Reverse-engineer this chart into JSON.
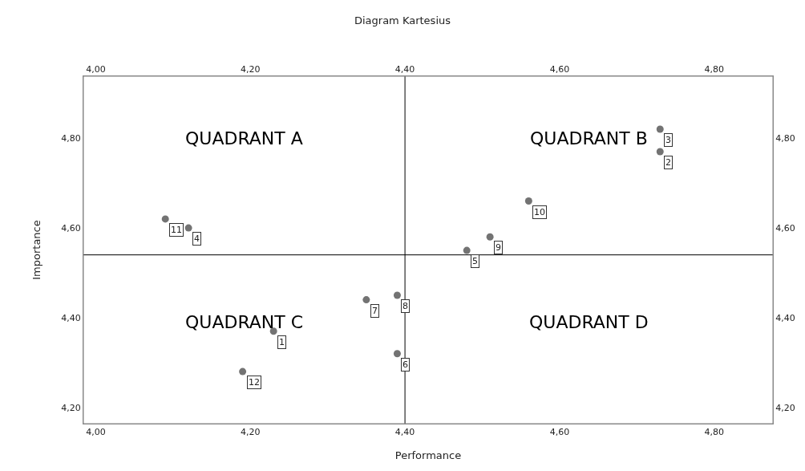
{
  "chart_data": {
    "type": "scatter",
    "title": "Diagram Kartesius",
    "xlabel": "Performance",
    "ylabel": "Importance",
    "x": [
      4.23,
      4.73,
      4.73,
      4.12,
      4.48,
      4.39,
      4.35,
      4.39,
      4.51,
      4.56,
      4.09,
      4.19
    ],
    "series": [
      {
        "color": "#737373",
        "values": [
          4.37,
          4.77,
          4.82,
          4.6,
          4.55,
          4.32,
          4.44,
          4.45,
          4.58,
          4.66,
          4.62,
          4.28
        ]
      }
    ],
    "marker": "circle",
    "xlim": [
      3.984,
      4.876
    ],
    "ylim": [
      4.164,
      4.938
    ],
    "xticks": [
      {
        "value": 4.0,
        "label": "4,00"
      },
      {
        "value": 4.2,
        "label": "4,20"
      },
      {
        "value": 4.4,
        "label": "4,40"
      },
      {
        "value": 4.6,
        "label": "4,60"
      },
      {
        "value": 4.8,
        "label": "4,80"
      }
    ],
    "yticks": [
      {
        "value": 4.2,
        "label": "4,20"
      },
      {
        "value": 4.4,
        "label": "4,40"
      },
      {
        "value": 4.6,
        "label": "4,60"
      },
      {
        "value": 4.8,
        "label": "4,80"
      }
    ],
    "x2lim": [
      3.984,
      4.876
    ],
    "y2lim": [
      4.164,
      4.938
    ],
    "x2ticks": [
      {
        "value": 4.0,
        "label": "4,00"
      },
      {
        "value": 4.2,
        "label": "4,20"
      },
      {
        "value": 4.4,
        "label": "4,40"
      },
      {
        "value": 4.6,
        "label": "4,60"
      },
      {
        "value": 4.8,
        "label": "4,80"
      }
    ],
    "y2ticks": [
      {
        "value": 4.2,
        "label": "4,20"
      },
      {
        "value": 4.4,
        "label": "4,40"
      },
      {
        "value": 4.6,
        "label": "4,60"
      },
      {
        "value": 4.8,
        "label": "4,80"
      }
    ],
    "ref_lines": [
      {
        "axis": "x",
        "value": 4.4,
        "color": "#000000"
      },
      {
        "axis": "y",
        "value": 4.54,
        "color": "#000000"
      }
    ],
    "legend": false,
    "annotations": [
      {
        "text": "1",
        "x": 4.23,
        "y": 4.37
      },
      {
        "text": "2",
        "x": 4.73,
        "y": 4.77
      },
      {
        "text": "3",
        "x": 4.73,
        "y": 4.82
      },
      {
        "text": "4",
        "x": 4.12,
        "y": 4.6
      },
      {
        "text": "5",
        "x": 4.48,
        "y": 4.55
      },
      {
        "text": "6",
        "x": 4.39,
        "y": 4.32
      },
      {
        "text": "7",
        "x": 4.35,
        "y": 4.44
      },
      {
        "text": "8",
        "x": 4.39,
        "y": 4.45
      },
      {
        "text": "9",
        "x": 4.51,
        "y": 4.58
      },
      {
        "text": "10",
        "x": 4.56,
        "y": 4.66
      },
      {
        "text": "11",
        "x": 4.09,
        "y": 4.62
      },
      {
        "text": "12",
        "x": 4.19,
        "y": 4.28
      },
      "QUADRANT A",
      "QUADRANT B",
      "QUADRANT C",
      "QUADRANT D"
    ]
  }
}
